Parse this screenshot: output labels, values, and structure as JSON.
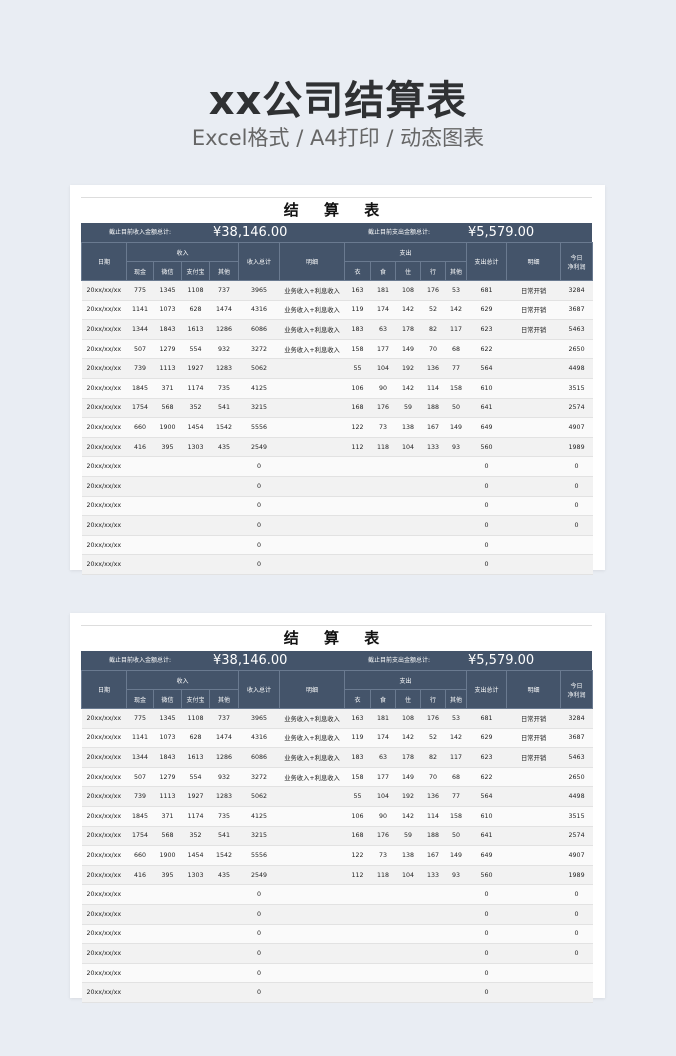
{
  "hero": {
    "title": "xx公司结算表",
    "subtitle": "Excel格式 / A4打印 / 动态图表"
  },
  "sheet": {
    "title": "结 算 表",
    "income_total_label": "截止目前收入金额总计:",
    "income_total": "¥38,146.00",
    "expense_total_label": "截止目前支出金额总计:",
    "expense_total": "¥5,579.00",
    "headers": {
      "date": "日期",
      "income": "收入",
      "cash": "现金",
      "wechat": "微信",
      "alipay": "支付宝",
      "other": "其他",
      "income_sum": "收入总计",
      "detail": "明细",
      "expense": "支出",
      "clothing": "衣",
      "food": "食",
      "housing": "住",
      "transport": "行",
      "expense_other": "其他",
      "expense_sum": "支出总计",
      "expense_detail": "明细",
      "net_profit_line1": "今日",
      "net_profit_line2": "净利润"
    },
    "rows": [
      [
        "20xx/xx/xx",
        "775",
        "1345",
        "1108",
        "737",
        "3965",
        "业务收入+利息收入",
        "163",
        "181",
        "108",
        "176",
        "53",
        "681",
        "日常开销",
        "3284"
      ],
      [
        "20xx/xx/xx",
        "1141",
        "1073",
        "628",
        "1474",
        "4316",
        "业务收入+利息收入",
        "119",
        "174",
        "142",
        "52",
        "142",
        "629",
        "日常开销",
        "3687"
      ],
      [
        "20xx/xx/xx",
        "1344",
        "1843",
        "1613",
        "1286",
        "6086",
        "业务收入+利息收入",
        "183",
        "63",
        "178",
        "82",
        "117",
        "623",
        "日常开销",
        "5463"
      ],
      [
        "20xx/xx/xx",
        "507",
        "1279",
        "554",
        "932",
        "3272",
        "业务收入+利息收入",
        "158",
        "177",
        "149",
        "70",
        "68",
        "622",
        "",
        "2650"
      ],
      [
        "20xx/xx/xx",
        "739",
        "1113",
        "1927",
        "1283",
        "5062",
        "",
        "55",
        "104",
        "192",
        "136",
        "77",
        "564",
        "",
        "4498"
      ],
      [
        "20xx/xx/xx",
        "1845",
        "371",
        "1174",
        "735",
        "4125",
        "",
        "106",
        "90",
        "142",
        "114",
        "158",
        "610",
        "",
        "3515"
      ],
      [
        "20xx/xx/xx",
        "1754",
        "568",
        "352",
        "541",
        "3215",
        "",
        "168",
        "176",
        "59",
        "188",
        "50",
        "641",
        "",
        "2574"
      ],
      [
        "20xx/xx/xx",
        "660",
        "1900",
        "1454",
        "1542",
        "5556",
        "",
        "122",
        "73",
        "138",
        "167",
        "149",
        "649",
        "",
        "4907"
      ],
      [
        "20xx/xx/xx",
        "416",
        "395",
        "1303",
        "435",
        "2549",
        "",
        "112",
        "118",
        "104",
        "133",
        "93",
        "560",
        "",
        "1989"
      ],
      [
        "20xx/xx/xx",
        "",
        "",
        "",
        "",
        "0",
        "",
        "",
        "",
        "",
        "",
        "",
        "0",
        "",
        "0"
      ],
      [
        "20xx/xx/xx",
        "",
        "",
        "",
        "",
        "0",
        "",
        "",
        "",
        "",
        "",
        "",
        "0",
        "",
        "0"
      ],
      [
        "20xx/xx/xx",
        "",
        "",
        "",
        "",
        "0",
        "",
        "",
        "",
        "",
        "",
        "",
        "0",
        "",
        "0"
      ],
      [
        "20xx/xx/xx",
        "",
        "",
        "",
        "",
        "0",
        "",
        "",
        "",
        "",
        "",
        "",
        "0",
        "",
        "0"
      ],
      [
        "20xx/xx/xx",
        "",
        "",
        "",
        "",
        "0",
        "",
        "",
        "",
        "",
        "",
        "",
        "0",
        "",
        ""
      ],
      [
        "20xx/xx/xx",
        "",
        "",
        "",
        "",
        "0",
        "",
        "",
        "",
        "",
        "",
        "",
        "0",
        "",
        ""
      ]
    ]
  }
}
